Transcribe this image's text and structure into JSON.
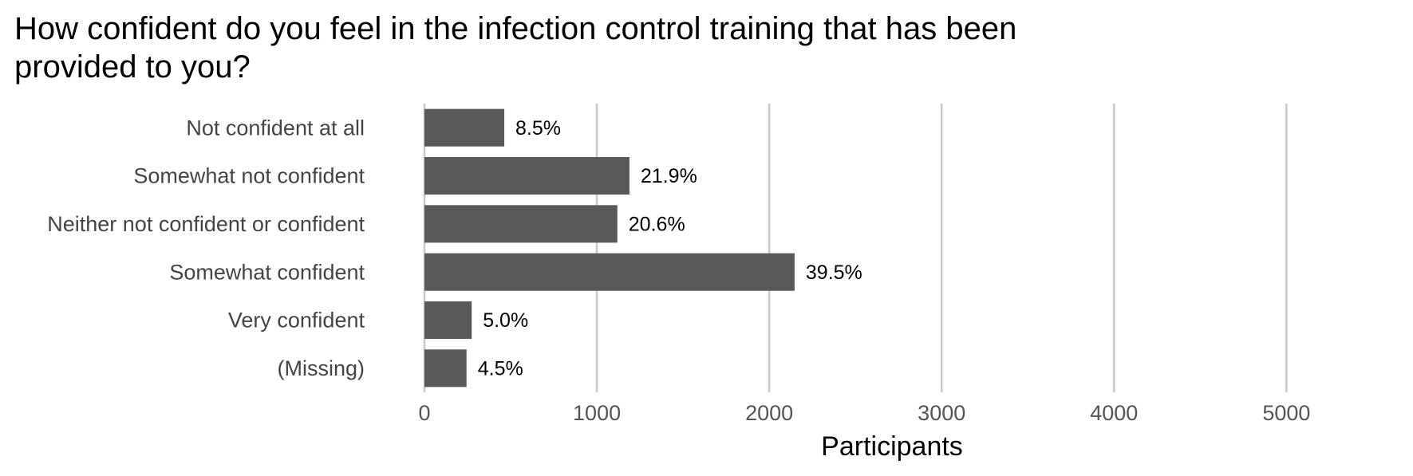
{
  "chart_data": {
    "type": "barh",
    "title": "How confident do you feel in the infection control training that has been provided to you?",
    "x_label": "Participants",
    "categories": [
      "Not confident at all",
      "Somewhat not confident",
      "Neither not confident or confident",
      "Somewhat confident",
      "Very confident",
      "(Missing)"
    ],
    "values": [
      463,
      1189,
      1119,
      2147,
      274,
      244
    ],
    "bar_labels": [
      "8.5%",
      "21.9%",
      "20.6%",
      "39.5%",
      "5.0%",
      "4.5%"
    ],
    "color": "#595959",
    "xlim": [
      0,
      5600
    ],
    "xticks": [
      0,
      1000,
      2000,
      3000,
      4000,
      5000
    ],
    "grid": true
  }
}
